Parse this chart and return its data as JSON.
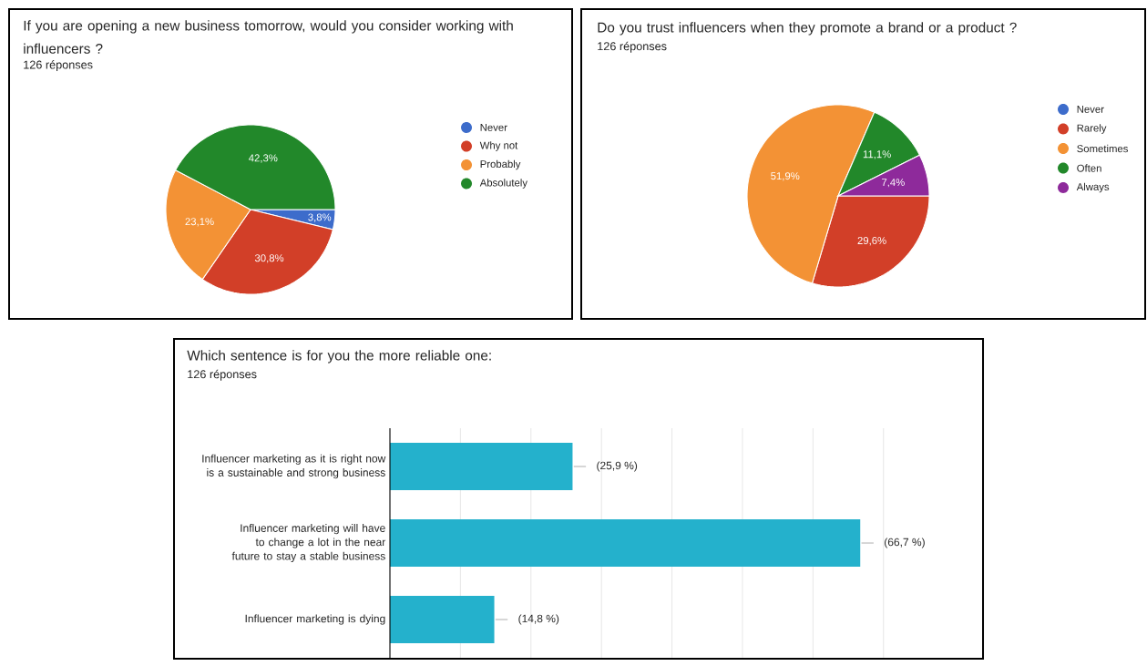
{
  "chart_data": [
    {
      "type": "pie",
      "title": "If you are opening a new business tomorrow, would you consider working with influencers ?",
      "subtitle": "126 réponses",
      "categories": [
        "Never",
        "Why not",
        "Probably",
        "Absolutely"
      ],
      "values": [
        3.8,
        30.8,
        23.1,
        42.3
      ],
      "colors": [
        "#3d6ccb",
        "#d23f28",
        "#f39235",
        "#22882a"
      ],
      "value_labels": [
        "3,8%",
        "30,8%",
        "23,1%",
        "42,3%"
      ],
      "legend": "right"
    },
    {
      "type": "pie",
      "title": "Do  you trust influencers when they promote a brand or a product ?",
      "subtitle": "126 réponses",
      "categories": [
        "Never",
        "Rarely",
        "Sometimes",
        "Often",
        "Always"
      ],
      "values": [
        0,
        29.6,
        51.9,
        11.1,
        7.4
      ],
      "colors": [
        "#3d6ccb",
        "#d23f28",
        "#f39235",
        "#22882a",
        "#8e2a9b"
      ],
      "value_labels": [
        null,
        "29,6%",
        "51,9%",
        "11,1%",
        "7,4%"
      ],
      "legend": "right"
    },
    {
      "type": "bar",
      "orientation": "horizontal",
      "title": "Which sentence is for you the more reliable one:",
      "subtitle": "126 réponses",
      "categories": [
        "Influencer marketing as it is right now is a sustainable and strong business",
        "Influencer marketing will have to change a lot in the near future to stay a stable business",
        "Influencer marketing is dying"
      ],
      "values": [
        25.9,
        66.7,
        14.8
      ],
      "color": "#24b1cc",
      "value_labels": [
        "(25,9 %)",
        "(66,7 %)",
        "(14,8 %)"
      ],
      "grid": "x",
      "tick_labels": "y"
    }
  ]
}
